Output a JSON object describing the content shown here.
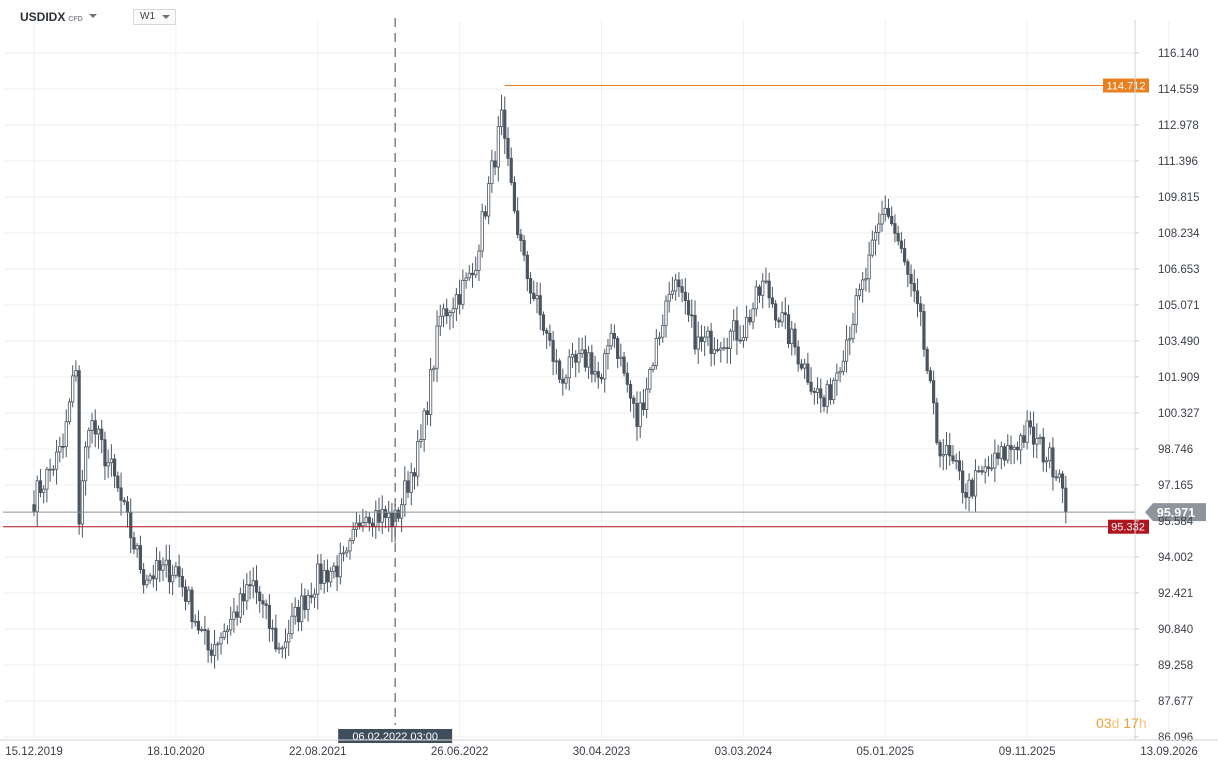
{
  "header": {
    "symbol": "USDIDX",
    "symbol_tag": "CFD",
    "timeframe": "W1"
  },
  "timer": {
    "days": "03",
    "days_unit": "d",
    "hours": "17",
    "hours_unit": "h"
  },
  "colors": {
    "candle": "#4b5560",
    "grid": "#eef0f2",
    "axis_text": "#3b4048",
    "high_line": "#e8801f",
    "low_line": "#b0141e",
    "current_line": "#8a9199"
  },
  "chart_data": {
    "type": "candlestick",
    "y_ticks": [
      "116.140",
      "114.559",
      "112.978",
      "111.396",
      "109.815",
      "108.234",
      "106.653",
      "105.071",
      "103.490",
      "101.909",
      "100.327",
      "98.746",
      "97.165",
      "95.584",
      "94.002",
      "92.421",
      "90.840",
      "89.258",
      "87.677",
      "86.096"
    ],
    "ylim": [
      86.096,
      116.14
    ],
    "x_labels": [
      "15.12.2019",
      "18.10.2020",
      "22.08.2021",
      "26.06.2022",
      "30.04.2023",
      "03.03.2024",
      "05.01.2025",
      "09.11.2025",
      "13.09.2026"
    ],
    "crosshair_label": "06.02.2022 03:00",
    "current_price": {
      "value": 95.971,
      "label": "95.971"
    },
    "levels": [
      {
        "value": 114.712,
        "label": "114.712",
        "color": "#e8801f"
      },
      {
        "value": 95.332,
        "label": "95.332",
        "color": "#b0141e"
      }
    ],
    "close_path": [
      [
        "15.12.2019",
        96.6
      ],
      [
        "16.02.2020",
        98.8
      ],
      [
        "15.03.2020",
        102.5
      ],
      [
        "22.03.2020",
        95.6
      ],
      [
        "12.04.2020",
        100.1
      ],
      [
        "31.05.2020",
        97.8
      ],
      [
        "12.07.2020",
        95.0
      ],
      [
        "09.08.2020",
        93.2
      ],
      [
        "18.10.2020",
        93.5
      ],
      [
        "27.12.2020",
        89.9
      ],
      [
        "07.02.2021",
        91.0
      ],
      [
        "04.04.2021",
        92.8
      ],
      [
        "30.05.2021",
        89.9
      ],
      [
        "25.07.2021",
        92.2
      ],
      [
        "22.08.2021",
        93.1
      ],
      [
        "24.10.2021",
        93.8
      ],
      [
        "28.11.2021",
        96.1
      ],
      [
        "06.02.2022",
        95.6
      ],
      [
        "03.04.2022",
        99.0
      ],
      [
        "15.05.2022",
        104.5
      ],
      [
        "24.07.2022",
        106.4
      ],
      [
        "25.09.2022",
        113.2
      ],
      [
        "02.10.2022",
        111.8
      ],
      [
        "13.11.2022",
        106.8
      ],
      [
        "29.01.2023",
        101.9
      ],
      [
        "02.04.2023",
        102.8
      ],
      [
        "30.04.2023",
        101.5
      ],
      [
        "21.05.2023",
        104.2
      ],
      [
        "16.07.2023",
        99.9
      ],
      [
        "01.10.2023",
        106.2
      ],
      [
        "27.11.2023",
        103.3
      ],
      [
        "03.03.2024",
        104.0
      ],
      [
        "16.04.2024",
        106.0
      ],
      [
        "26.08.2024",
        100.6
      ],
      [
        "24.11.2024",
        106.3
      ],
      [
        "05.01.2025",
        109.5
      ],
      [
        "02.02.2025",
        107.8
      ],
      [
        "23.03.2025",
        104.2
      ],
      [
        "27.04.2025",
        99.2
      ],
      [
        "30.06.2025",
        96.9
      ],
      [
        "09.11.2025",
        99.5
      ],
      [
        "25.01.2026",
        97.6
      ],
      [
        "01.02.2026",
        95.97
      ]
    ]
  }
}
